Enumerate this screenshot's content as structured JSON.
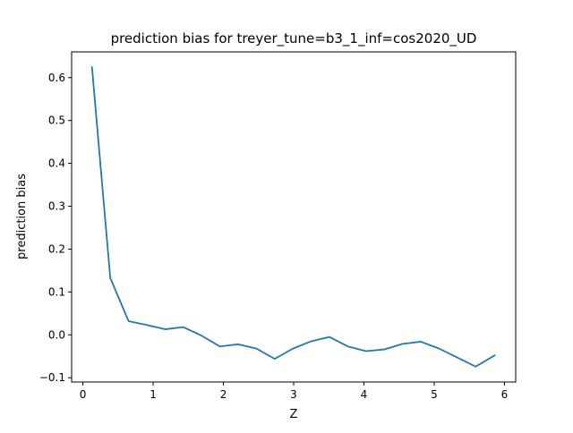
{
  "chart_data": {
    "type": "line",
    "title": "prediction bias for treyer_tune=b3_1_inf=cos2020_UD",
    "xlabel": "Z",
    "ylabel": "prediction bias",
    "xlim": [
      -0.16,
      6.16
    ],
    "ylim": [
      -0.11,
      0.66
    ],
    "xticks": [
      0,
      1,
      2,
      3,
      4,
      5,
      6
    ],
    "xtick_labels": [
      "0",
      "1",
      "2",
      "3",
      "4",
      "5",
      "6"
    ],
    "yticks": [
      -0.1,
      0.0,
      0.1,
      0.2,
      0.3,
      0.4,
      0.5,
      0.6
    ],
    "ytick_labels": [
      "−0.1",
      "0.0",
      "0.1",
      "0.2",
      "0.3",
      "0.4",
      "0.5",
      "0.6"
    ],
    "grid": false,
    "series": [
      {
        "color": "#1f77b4",
        "x": [
          0.13,
          0.39,
          0.65,
          0.91,
          1.17,
          1.43,
          1.69,
          1.95,
          2.21,
          2.47,
          2.73,
          2.99,
          3.25,
          3.51,
          3.77,
          4.03,
          4.29,
          4.55,
          4.81,
          5.07,
          5.33,
          5.59,
          5.86
        ],
        "y": [
          0.624,
          0.133,
          0.032,
          0.023,
          0.013,
          0.018,
          -0.002,
          -0.027,
          -0.022,
          -0.032,
          -0.056,
          -0.032,
          -0.015,
          -0.005,
          -0.027,
          -0.038,
          -0.034,
          -0.021,
          -0.016,
          -0.032,
          -0.053,
          -0.074,
          -0.048
        ]
      }
    ]
  }
}
